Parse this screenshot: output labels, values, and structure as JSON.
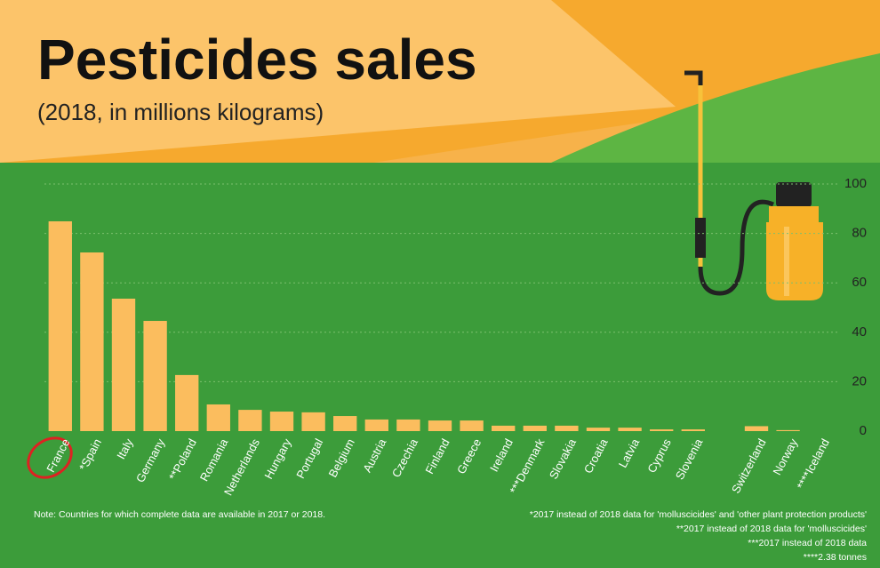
{
  "chart_data": {
    "type": "bar",
    "title": "Pesticides sales",
    "subtitle": "(2018, in millions kilograms)",
    "categories": [
      "France",
      "*Spain",
      "Italy",
      "Germany",
      "**Poland",
      "Romania",
      "Netherlands",
      "Hungary",
      "Portugal",
      "Belgium",
      "Austria",
      "Czechia",
      "Finland",
      "Greece",
      "Ireland",
      "***Denmark",
      "Slovakia",
      "Croatia",
      "Latvia",
      "Cyprus",
      "Slovenia",
      null,
      "Switzerland",
      "Norway",
      "****Iceland"
    ],
    "values": [
      84.9,
      72.3,
      53.6,
      44.6,
      22.7,
      10.8,
      8.6,
      7.9,
      7.6,
      6.1,
      4.7,
      4.7,
      4.3,
      4.3,
      2.2,
      2.2,
      2.2,
      1.4,
      1.4,
      0.7,
      0.7,
      null,
      2.0,
      0.4,
      0
    ],
    "color": "#fbbd5e",
    "ylim": [
      0,
      100
    ],
    "yticks": [
      0,
      20,
      40,
      60,
      80,
      100
    ],
    "grid": true,
    "note": "Note: Countries for which complete data are available in 2017 or 2018.",
    "footnotes": [
      "*2017 instead of 2018 data for 'molluscicides' and 'other plant protection products'",
      "**2017 instead of 2018 data for 'molluscicides'",
      "***2017 instead of 2018 data",
      "****2.38 tonnes"
    ]
  }
}
